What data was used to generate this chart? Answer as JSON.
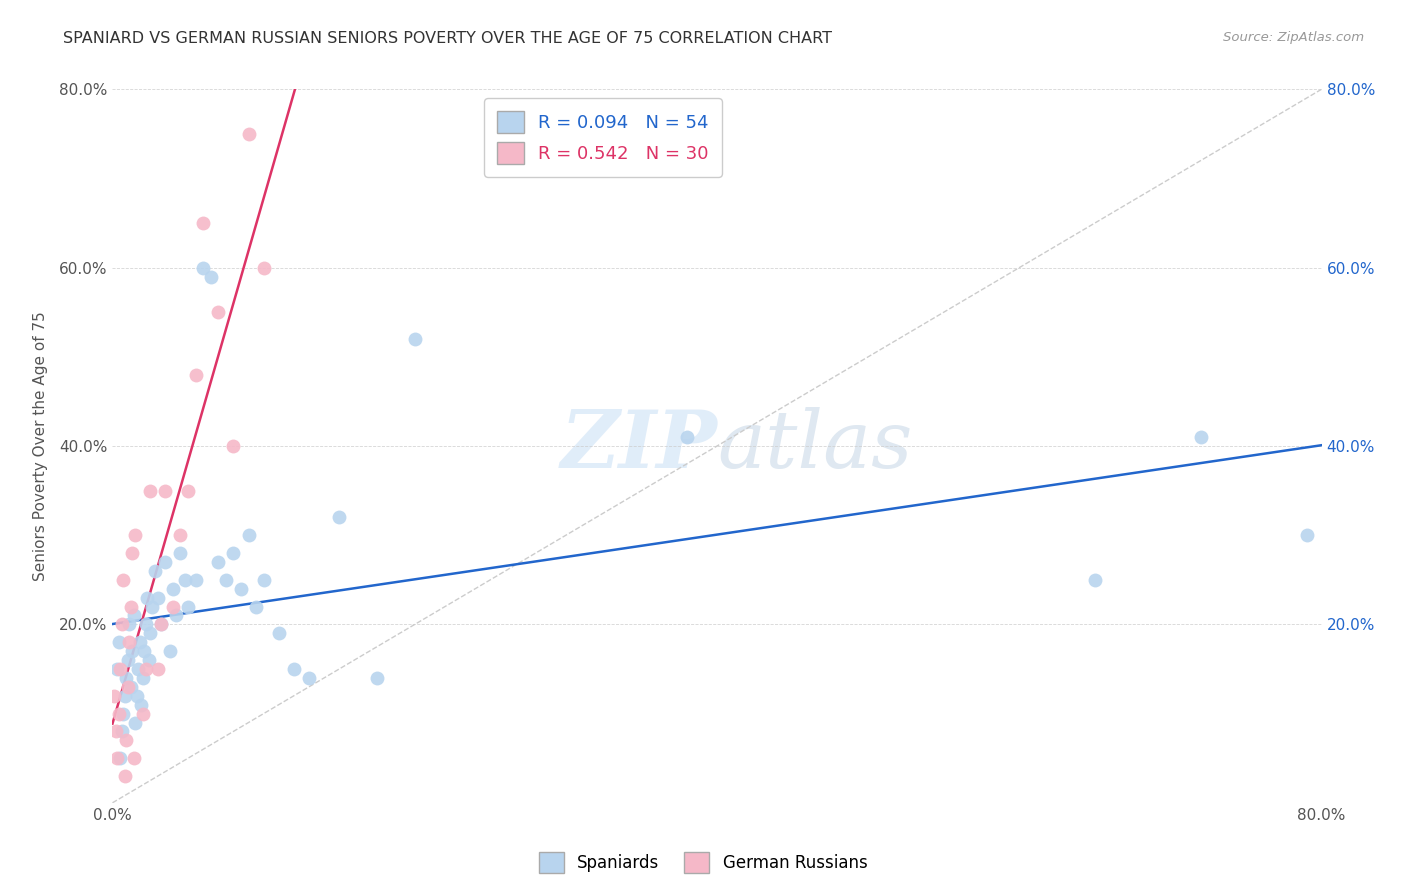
{
  "title": "SPANIARD VS GERMAN RUSSIAN SENIORS POVERTY OVER THE AGE OF 75 CORRELATION CHART",
  "source": "Source: ZipAtlas.com",
  "ylabel": "Seniors Poverty Over the Age of 75",
  "xlim": [
    0,
    0.8
  ],
  "ylim": [
    0,
    0.8
  ],
  "xticks": [
    0.0,
    0.1,
    0.2,
    0.3,
    0.4,
    0.5,
    0.6,
    0.7,
    0.8
  ],
  "yticks": [
    0.0,
    0.2,
    0.4,
    0.6,
    0.8
  ],
  "xtick_labels": [
    "0.0%",
    "",
    "",
    "",
    "",
    "",
    "",
    "",
    "80.0%"
  ],
  "ytick_labels": [
    "",
    "20.0%",
    "40.0%",
    "60.0%",
    "80.0%"
  ],
  "spaniards_R": 0.094,
  "spaniards_N": 54,
  "german_russians_R": 0.542,
  "german_russians_N": 30,
  "spaniards_color": "#b8d4ee",
  "german_russians_color": "#f5b8c8",
  "spaniards_line_color": "#2266cc",
  "german_russians_line_color": "#dd3366",
  "diagonal_color": "#cccccc",
  "background_color": "#ffffff",
  "spaniards_x": [
    0.003,
    0.004,
    0.005,
    0.006,
    0.007,
    0.008,
    0.009,
    0.01,
    0.011,
    0.012,
    0.013,
    0.014,
    0.015,
    0.016,
    0.017,
    0.018,
    0.019,
    0.02,
    0.021,
    0.022,
    0.023,
    0.024,
    0.025,
    0.026,
    0.028,
    0.03,
    0.032,
    0.035,
    0.038,
    0.04,
    0.042,
    0.045,
    0.048,
    0.05,
    0.055,
    0.06,
    0.065,
    0.07,
    0.075,
    0.08,
    0.085,
    0.09,
    0.095,
    0.1,
    0.11,
    0.12,
    0.13,
    0.15,
    0.175,
    0.2,
    0.38,
    0.65,
    0.72,
    0.79
  ],
  "spaniards_y": [
    0.15,
    0.18,
    0.05,
    0.08,
    0.1,
    0.12,
    0.14,
    0.16,
    0.2,
    0.13,
    0.17,
    0.21,
    0.09,
    0.12,
    0.15,
    0.18,
    0.11,
    0.14,
    0.17,
    0.2,
    0.23,
    0.16,
    0.19,
    0.22,
    0.26,
    0.23,
    0.2,
    0.27,
    0.17,
    0.24,
    0.21,
    0.28,
    0.25,
    0.22,
    0.25,
    0.6,
    0.59,
    0.27,
    0.25,
    0.28,
    0.24,
    0.3,
    0.22,
    0.25,
    0.19,
    0.15,
    0.14,
    0.32,
    0.14,
    0.52,
    0.41,
    0.25,
    0.41,
    0.3
  ],
  "german_russians_x": [
    0.001,
    0.002,
    0.003,
    0.004,
    0.005,
    0.006,
    0.007,
    0.008,
    0.009,
    0.01,
    0.011,
    0.012,
    0.013,
    0.014,
    0.015,
    0.02,
    0.022,
    0.025,
    0.03,
    0.032,
    0.035,
    0.04,
    0.045,
    0.05,
    0.055,
    0.06,
    0.07,
    0.08,
    0.09,
    0.1
  ],
  "german_russians_y": [
    0.12,
    0.08,
    0.05,
    0.1,
    0.15,
    0.2,
    0.25,
    0.03,
    0.07,
    0.13,
    0.18,
    0.22,
    0.28,
    0.05,
    0.3,
    0.1,
    0.15,
    0.35,
    0.15,
    0.2,
    0.35,
    0.22,
    0.3,
    0.35,
    0.48,
    0.65,
    0.55,
    0.4,
    0.75,
    0.6
  ]
}
